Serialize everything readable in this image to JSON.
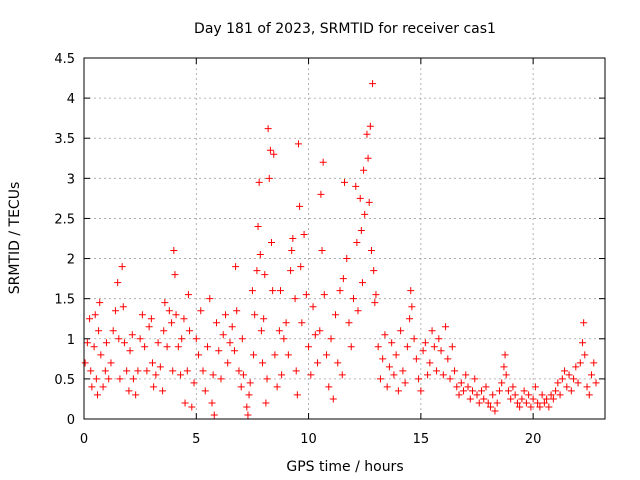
{
  "chart_data": {
    "type": "scatter",
    "title": "Day 181 of 2023, SRMTID for receiver cas1",
    "xlabel": "GPS time / hours",
    "ylabel": "SRMTID / TECUs",
    "xlim": [
      0,
      23.2
    ],
    "ylim": [
      0,
      4.5
    ],
    "xticks": [
      0,
      5,
      10,
      15,
      20
    ],
    "xtick_labels": [
      "0",
      "5",
      "10",
      "15",
      "20"
    ],
    "yticks": [
      0,
      0.5,
      1,
      1.5,
      2,
      2.5,
      3,
      3.5,
      4,
      4.5
    ],
    "ytick_labels": [
      "0",
      "0.5",
      "1",
      "1.5",
      "2",
      "2.5",
      "3",
      "3.5",
      "4",
      "4.5"
    ],
    "grid": true,
    "marker": "+",
    "color": "#ff0000",
    "series": [
      {
        "name": "cas1",
        "points": [
          [
            0.05,
            0.7
          ],
          [
            0.15,
            0.95
          ],
          [
            0.25,
            1.25
          ],
          [
            0.3,
            0.6
          ],
          [
            0.35,
            0.4
          ],
          [
            0.45,
            0.9
          ],
          [
            0.5,
            1.3
          ],
          [
            0.55,
            0.5
          ],
          [
            0.6,
            0.3
          ],
          [
            0.65,
            1.1
          ],
          [
            0.7,
            1.45
          ],
          [
            0.75,
            0.8
          ],
          [
            0.85,
            0.4
          ],
          [
            0.95,
            0.6
          ],
          [
            1.0,
            0.95
          ],
          [
            1.1,
            0.5
          ],
          [
            1.2,
            0.7
          ],
          [
            1.3,
            1.1
          ],
          [
            1.4,
            1.35
          ],
          [
            1.5,
            1.7
          ],
          [
            1.55,
            1.0
          ],
          [
            1.6,
            0.5
          ],
          [
            1.7,
            1.9
          ],
          [
            1.75,
            1.4
          ],
          [
            1.8,
            0.95
          ],
          [
            1.9,
            0.6
          ],
          [
            2.0,
            0.35
          ],
          [
            2.05,
            0.85
          ],
          [
            2.15,
            1.05
          ],
          [
            2.2,
            0.5
          ],
          [
            2.3,
            0.3
          ],
          [
            2.4,
            0.6
          ],
          [
            2.5,
            1.0
          ],
          [
            2.6,
            1.3
          ],
          [
            2.7,
            0.9
          ],
          [
            2.8,
            0.6
          ],
          [
            2.9,
            1.15
          ],
          [
            3.0,
            1.25
          ],
          [
            3.05,
            0.7
          ],
          [
            3.1,
            0.4
          ],
          [
            3.2,
            0.55
          ],
          [
            3.3,
            0.95
          ],
          [
            3.4,
            0.65
          ],
          [
            3.5,
            0.35
          ],
          [
            3.55,
            1.1
          ],
          [
            3.6,
            1.45
          ],
          [
            3.7,
            0.9
          ],
          [
            3.8,
            1.35
          ],
          [
            3.9,
            1.2
          ],
          [
            3.95,
            0.6
          ],
          [
            4.0,
            2.1
          ],
          [
            4.05,
            1.8
          ],
          [
            4.1,
            1.3
          ],
          [
            4.2,
            0.9
          ],
          [
            4.3,
            0.55
          ],
          [
            4.35,
            1.0
          ],
          [
            4.45,
            1.25
          ],
          [
            4.5,
            0.2
          ],
          [
            4.6,
            0.6
          ],
          [
            4.65,
            1.55
          ],
          [
            4.7,
            1.1
          ],
          [
            4.8,
            0.15
          ],
          [
            4.9,
            0.45
          ],
          [
            5.0,
            1.0
          ],
          [
            5.1,
            0.8
          ],
          [
            5.2,
            1.35
          ],
          [
            5.3,
            0.6
          ],
          [
            5.4,
            0.35
          ],
          [
            5.5,
            0.9
          ],
          [
            5.6,
            1.5
          ],
          [
            5.7,
            0.2
          ],
          [
            5.75,
            0.55
          ],
          [
            5.8,
            0.05
          ],
          [
            5.9,
            1.2
          ],
          [
            6.0,
            0.85
          ],
          [
            6.1,
            0.5
          ],
          [
            6.2,
            1.05
          ],
          [
            6.3,
            1.3
          ],
          [
            6.4,
            0.7
          ],
          [
            6.5,
            0.95
          ],
          [
            6.6,
            1.15
          ],
          [
            6.7,
            0.85
          ],
          [
            6.75,
            1.9
          ],
          [
            6.8,
            1.35
          ],
          [
            6.9,
            0.6
          ],
          [
            7.0,
            0.4
          ],
          [
            7.05,
            1.0
          ],
          [
            7.1,
            0.55
          ],
          [
            7.25,
            0.15
          ],
          [
            7.3,
            0.05
          ],
          [
            7.35,
            0.3
          ],
          [
            7.4,
            0.45
          ],
          [
            7.5,
            1.6
          ],
          [
            7.55,
            0.8
          ],
          [
            7.6,
            1.3
          ],
          [
            7.7,
            1.85
          ],
          [
            7.75,
            2.4
          ],
          [
            7.8,
            2.95
          ],
          [
            7.85,
            2.05
          ],
          [
            7.9,
            1.1
          ],
          [
            7.95,
            0.7
          ],
          [
            8.0,
            1.25
          ],
          [
            8.05,
            1.8
          ],
          [
            8.1,
            0.2
          ],
          [
            8.15,
            0.5
          ],
          [
            8.2,
            3.62
          ],
          [
            8.25,
            3.0
          ],
          [
            8.3,
            3.35
          ],
          [
            8.35,
            2.2
          ],
          [
            8.4,
            1.6
          ],
          [
            8.45,
            3.3
          ],
          [
            8.5,
            0.8
          ],
          [
            8.6,
            0.4
          ],
          [
            8.7,
            1.1
          ],
          [
            8.75,
            1.6
          ],
          [
            8.8,
            0.55
          ],
          [
            8.9,
            1.0
          ],
          [
            9.0,
            1.2
          ],
          [
            9.1,
            0.8
          ],
          [
            9.2,
            1.85
          ],
          [
            9.25,
            2.1
          ],
          [
            9.3,
            2.25
          ],
          [
            9.4,
            1.5
          ],
          [
            9.45,
            0.6
          ],
          [
            9.5,
            0.3
          ],
          [
            9.55,
            3.43
          ],
          [
            9.6,
            2.65
          ],
          [
            9.65,
            1.9
          ],
          [
            9.7,
            1.2
          ],
          [
            9.8,
            2.3
          ],
          [
            9.9,
            1.55
          ],
          [
            10.0,
            0.9
          ],
          [
            10.1,
            0.55
          ],
          [
            10.2,
            1.4
          ],
          [
            10.3,
            1.05
          ],
          [
            10.4,
            0.7
          ],
          [
            10.5,
            1.1
          ],
          [
            10.55,
            2.8
          ],
          [
            10.6,
            2.1
          ],
          [
            10.65,
            3.2
          ],
          [
            10.7,
            1.55
          ],
          [
            10.8,
            0.8
          ],
          [
            10.9,
            0.4
          ],
          [
            11.0,
            1.0
          ],
          [
            11.1,
            0.25
          ],
          [
            11.2,
            1.3
          ],
          [
            11.3,
            0.7
          ],
          [
            11.4,
            1.6
          ],
          [
            11.5,
            0.55
          ],
          [
            11.55,
            1.75
          ],
          [
            11.6,
            2.95
          ],
          [
            11.7,
            2.0
          ],
          [
            11.8,
            1.2
          ],
          [
            11.9,
            0.9
          ],
          [
            12.0,
            1.5
          ],
          [
            12.1,
            2.9
          ],
          [
            12.15,
            2.2
          ],
          [
            12.2,
            1.35
          ],
          [
            12.3,
            2.75
          ],
          [
            12.35,
            2.35
          ],
          [
            12.4,
            1.7
          ],
          [
            12.45,
            3.1
          ],
          [
            12.5,
            2.55
          ],
          [
            12.6,
            3.55
          ],
          [
            12.65,
            3.25
          ],
          [
            12.7,
            2.7
          ],
          [
            12.75,
            3.65
          ],
          [
            12.8,
            2.1
          ],
          [
            12.85,
            4.18
          ],
          [
            12.9,
            1.85
          ],
          [
            12.95,
            1.45
          ],
          [
            13.0,
            1.55
          ],
          [
            13.1,
            0.9
          ],
          [
            13.2,
            0.5
          ],
          [
            13.3,
            0.75
          ],
          [
            13.4,
            1.05
          ],
          [
            13.5,
            0.4
          ],
          [
            13.6,
            0.65
          ],
          [
            13.7,
            0.95
          ],
          [
            13.8,
            0.55
          ],
          [
            13.9,
            0.8
          ],
          [
            14.0,
            0.35
          ],
          [
            14.1,
            1.1
          ],
          [
            14.2,
            0.6
          ],
          [
            14.3,
            0.45
          ],
          [
            14.4,
            0.9
          ],
          [
            14.5,
            1.25
          ],
          [
            14.55,
            1.6
          ],
          [
            14.6,
            1.4
          ],
          [
            14.7,
            1.0
          ],
          [
            14.8,
            0.75
          ],
          [
            14.9,
            0.5
          ],
          [
            15.0,
            0.35
          ],
          [
            15.1,
            0.85
          ],
          [
            15.2,
            0.95
          ],
          [
            15.3,
            0.55
          ],
          [
            15.4,
            0.7
          ],
          [
            15.5,
            1.1
          ],
          [
            15.6,
            0.9
          ],
          [
            15.7,
            0.6
          ],
          [
            15.8,
            1.0
          ],
          [
            15.9,
            0.85
          ],
          [
            16.0,
            0.55
          ],
          [
            16.1,
            1.15
          ],
          [
            16.2,
            0.75
          ],
          [
            16.3,
            0.5
          ],
          [
            16.4,
            0.9
          ],
          [
            16.5,
            0.6
          ],
          [
            16.6,
            0.4
          ],
          [
            16.7,
            0.3
          ],
          [
            16.8,
            0.45
          ],
          [
            16.9,
            0.35
          ],
          [
            17.0,
            0.55
          ],
          [
            17.1,
            0.4
          ],
          [
            17.2,
            0.25
          ],
          [
            17.3,
            0.35
          ],
          [
            17.4,
            0.5
          ],
          [
            17.5,
            0.3
          ],
          [
            17.6,
            0.2
          ],
          [
            17.7,
            0.35
          ],
          [
            17.8,
            0.25
          ],
          [
            17.9,
            0.4
          ],
          [
            18.0,
            0.2
          ],
          [
            18.1,
            0.15
          ],
          [
            18.2,
            0.3
          ],
          [
            18.3,
            0.1
          ],
          [
            18.4,
            0.2
          ],
          [
            18.5,
            0.35
          ],
          [
            18.6,
            0.45
          ],
          [
            18.7,
            0.65
          ],
          [
            18.75,
            0.8
          ],
          [
            18.8,
            0.55
          ],
          [
            18.9,
            0.35
          ],
          [
            19.0,
            0.25
          ],
          [
            19.1,
            0.4
          ],
          [
            19.2,
            0.3
          ],
          [
            19.3,
            0.2
          ],
          [
            19.4,
            0.15
          ],
          [
            19.5,
            0.25
          ],
          [
            19.6,
            0.35
          ],
          [
            19.7,
            0.2
          ],
          [
            19.8,
            0.3
          ],
          [
            19.9,
            0.15
          ],
          [
            20.0,
            0.25
          ],
          [
            20.1,
            0.4
          ],
          [
            20.2,
            0.2
          ],
          [
            20.3,
            0.15
          ],
          [
            20.4,
            0.3
          ],
          [
            20.5,
            0.2
          ],
          [
            20.6,
            0.25
          ],
          [
            20.7,
            0.15
          ],
          [
            20.8,
            0.3
          ],
          [
            20.9,
            0.25
          ],
          [
            21.0,
            0.35
          ],
          [
            21.1,
            0.45
          ],
          [
            21.2,
            0.3
          ],
          [
            21.3,
            0.5
          ],
          [
            21.4,
            0.6
          ],
          [
            21.5,
            0.4
          ],
          [
            21.6,
            0.55
          ],
          [
            21.7,
            0.35
          ],
          [
            21.8,
            0.5
          ],
          [
            21.9,
            0.65
          ],
          [
            22.0,
            0.45
          ],
          [
            22.1,
            0.7
          ],
          [
            22.2,
            0.95
          ],
          [
            22.25,
            1.2
          ],
          [
            22.3,
            0.8
          ],
          [
            22.4,
            0.4
          ],
          [
            22.5,
            0.3
          ],
          [
            22.6,
            0.55
          ],
          [
            22.7,
            0.7
          ],
          [
            22.8,
            0.45
          ]
        ]
      }
    ]
  }
}
